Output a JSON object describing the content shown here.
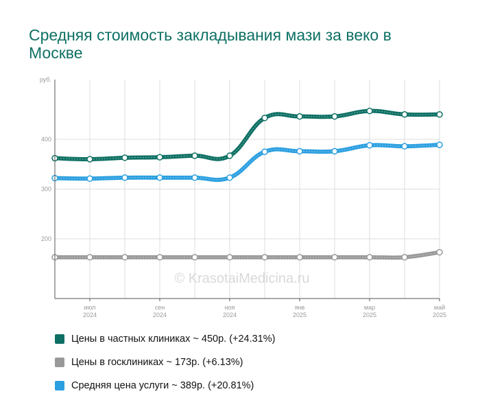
{
  "chart_data": {
    "type": "line",
    "title": "Средняя стоимость закладывания мази за веко в Москве",
    "ylabel": "руб.",
    "watermark": "© KrasotaiMedicina.ru",
    "ylim": [
      80,
      520
    ],
    "yticks": [
      200,
      300,
      400
    ],
    "grid": true,
    "legend_position": "bottom",
    "x": [
      "2024-06",
      "2024-07",
      "2024-08",
      "2024-09",
      "2024-10",
      "2024-11",
      "2024-12",
      "2025-01",
      "2025-02",
      "2025-03",
      "2025-04",
      "2025-05"
    ],
    "xticks": [
      {
        "index": 1,
        "month": "июл",
        "year": "2024"
      },
      {
        "index": 3,
        "month": "сен",
        "year": "2024"
      },
      {
        "index": 5,
        "month": "ноя",
        "year": "2024"
      },
      {
        "index": 7,
        "month": "янв",
        "year": "2025"
      },
      {
        "index": 9,
        "month": "мар",
        "year": "2025"
      },
      {
        "index": 11,
        "month": "май",
        "year": "2025"
      }
    ],
    "series": [
      {
        "name": "Цены в частных клиниках",
        "color": "#0e7064",
        "values": [
          362,
          360,
          363,
          364,
          367,
          367,
          443,
          446,
          446,
          457,
          450,
          450
        ]
      },
      {
        "name": "Цены в госклиниках",
        "color": "#999999",
        "values": [
          163,
          163,
          163,
          163,
          163,
          163,
          163,
          163,
          163,
          163,
          163,
          173
        ]
      },
      {
        "name": "Средняя цена услуги",
        "color": "#2b9fe0",
        "values": [
          322,
          321,
          323,
          323,
          323,
          323,
          375,
          376,
          376,
          388,
          386,
          389
        ]
      }
    ],
    "legend": [
      {
        "label": "Цены в частных клиниках ~ 450р. (+24.31%)",
        "color": "#0e7064"
      },
      {
        "label": "Цены в госклиниках ~ 173р. (+6.13%)",
        "color": "#999999"
      },
      {
        "label": "Средняя цена услуги ~ 389р. (+20.81%)",
        "color": "#2b9fe0"
      }
    ]
  }
}
